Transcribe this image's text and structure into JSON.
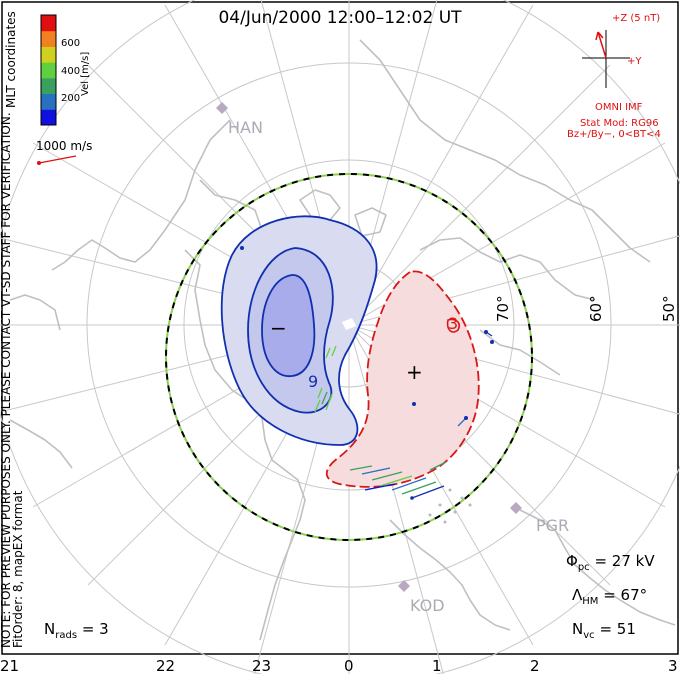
{
  "title": "04/Jun/2000 12:00–12:02 UT",
  "side_notes": {
    "coordinates": "MLT coordinates",
    "preview_note": "NOTE: FOR PREVIEW PURPOSES ONLY. PLEASE CONTACT VT-SD STAFF FOR VERIFICATION.",
    "fit_order": "FitOrder: 8, mapEX format"
  },
  "colorbar": {
    "label": "Vel [m/s]",
    "ticks": [
      "200",
      "400",
      "600"
    ],
    "colors": [
      "#1010e0",
      "#2a70c0",
      "#3aa060",
      "#60d040",
      "#d0d020",
      "#f08020",
      "#e01010"
    ]
  },
  "reference_vector": "1000 m/s",
  "imf": {
    "z_label": "+Z (5 nT)",
    "y_label": "+Y",
    "source": "OMNI IMF",
    "model": "Stat Mod: RG96",
    "condition": "Bz+/By−, 0<BT<4"
  },
  "stations": [
    "HAN",
    "PGR",
    "KOD"
  ],
  "latitude_labels": [
    "70°",
    "60°",
    "50°"
  ],
  "contour_markers": {
    "minus": "−",
    "plus": "+",
    "neg_value": "9",
    "pos_value": "3"
  },
  "stats": {
    "phi_pc": {
      "symbol": "Φ",
      "sub": "pc",
      "value": "= 27 kV"
    },
    "lambda_hm": {
      "symbol": "Λ",
      "sub": "HM",
      "value": "= 67°"
    },
    "n_vc": {
      "symbol": "N",
      "sub": "vc",
      "value": "= 51"
    },
    "n_rads": {
      "symbol": "N",
      "sub": "rads",
      "value": "= 3"
    }
  },
  "mlt_labels": [
    "21",
    "22",
    "23",
    "0",
    "1",
    "2",
    "3"
  ],
  "colors": {
    "neg_cell_fill": "#d9dcf0",
    "neg_cell_inner": "#c4c8ec",
    "neg_cell_core": "#a8acea",
    "neg_line": "#1030b0",
    "pos_cell_fill": "#f6dcdc",
    "pos_line": "#d81818",
    "grid": "#c8c8c8",
    "land": "#c0c0c0",
    "hmb_green": "#88d050"
  }
}
